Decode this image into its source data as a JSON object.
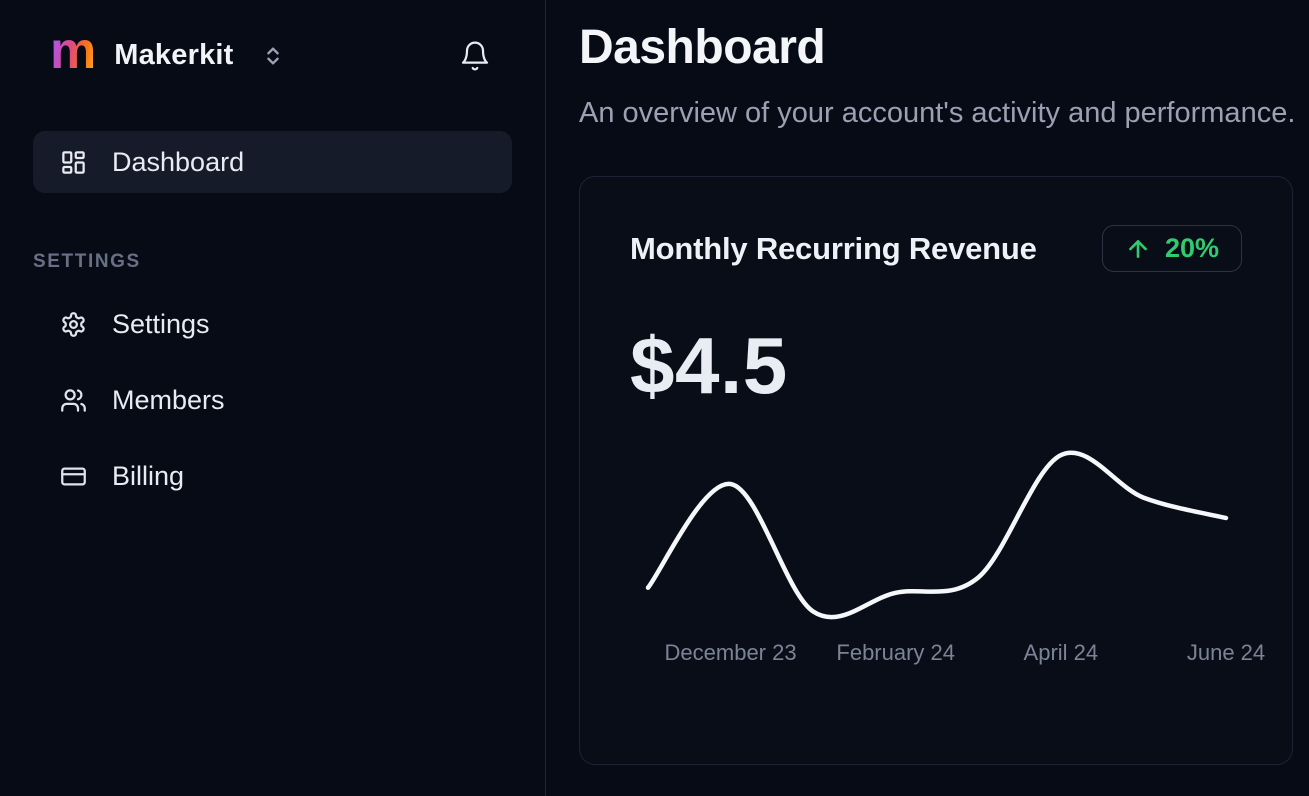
{
  "sidebar": {
    "logo_letter": "m",
    "brand": "Makerkit",
    "workspace_switcher_icon": "chevrons-up-down-icon",
    "notifications_icon": "bell-icon",
    "nav": [
      {
        "label": "Dashboard",
        "icon": "layout-dashboard-icon",
        "active": true
      }
    ],
    "section_label": "SETTINGS",
    "settings_nav": [
      {
        "label": "Settings",
        "icon": "gear-icon"
      },
      {
        "label": "Members",
        "icon": "users-icon"
      },
      {
        "label": "Billing",
        "icon": "credit-card-icon"
      }
    ]
  },
  "header": {
    "title": "Dashboard",
    "subtitle": "An overview of your account's activity and performance."
  },
  "card": {
    "title": "Monthly Recurring Revenue",
    "badge": {
      "trend": "up",
      "icon": "arrow-up-icon",
      "value": "20%"
    },
    "amount": "$4.5"
  },
  "chart_data": {
    "type": "line",
    "title": "Monthly Recurring Revenue",
    "series": [
      {
        "name": "Monthly Recurring Revenue",
        "values": [
          19,
          80,
          5,
          16,
          25,
          97,
          72,
          60
        ]
      }
    ],
    "x_tick_labels": [
      "December 23",
      "February 24",
      "April 24",
      "June 24"
    ],
    "x_tick_indices": [
      1,
      3,
      5,
      7
    ],
    "ylim": [
      0,
      100
    ],
    "grid": false,
    "legend": false,
    "line_color": "#f5f7fa"
  },
  "colors": {
    "background": "#070b15",
    "accent_green": "#2ecc6e",
    "chart_line": "#f5f7fa",
    "logo_gradient": [
      "#a855f7",
      "#e3497c",
      "#f97316",
      "#fbb224"
    ]
  }
}
